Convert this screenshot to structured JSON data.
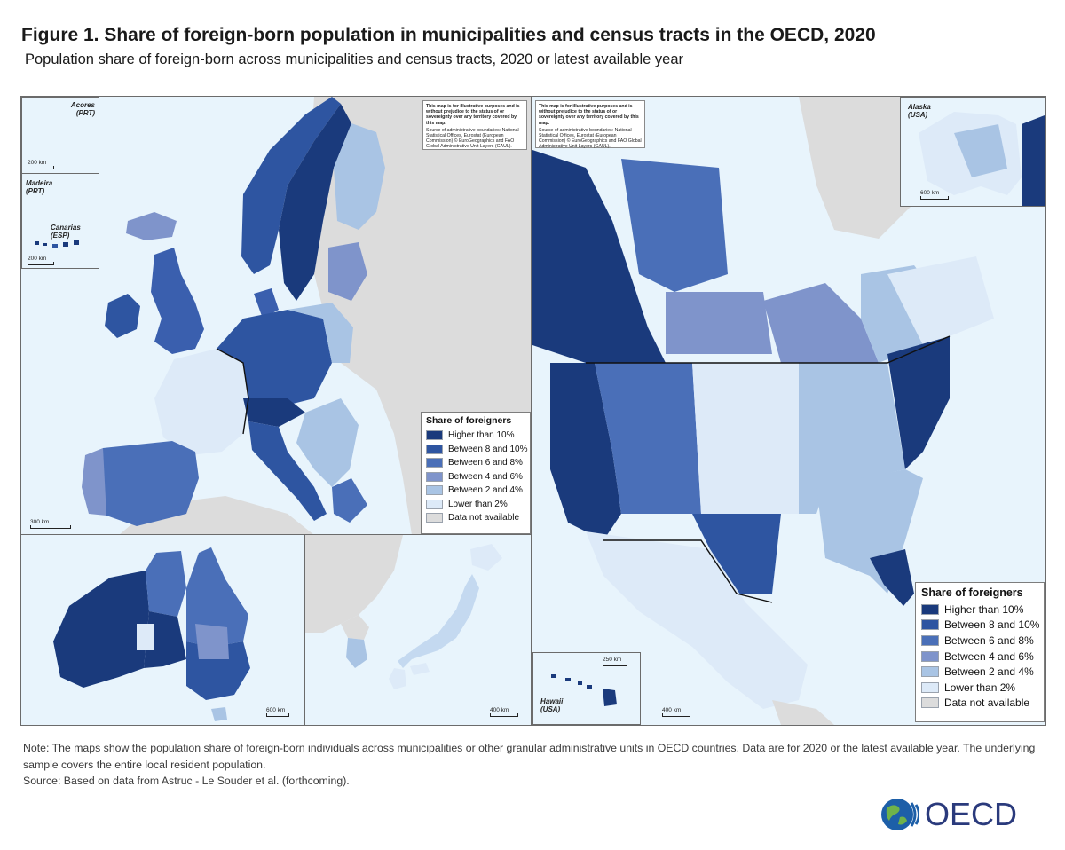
{
  "title": "Figure 1. Share of foreign-born population in municipalities and census tracts in the OECD, 2020",
  "subtitle": "Population share of foreign-born across municipalities and census tracts, 2020 or latest available year",
  "colors": {
    "c1": "#1a3a7c",
    "c2": "#2e55a1",
    "c3": "#4a6fb8",
    "c4": "#7f94cb",
    "c5": "#a9c4e4",
    "c6": "#ddeaf8",
    "na": "#dcdcdc",
    "sea": "#e8f4fc"
  },
  "disclaimer": {
    "bold": "This map is for illustrative purposes and is without prejudice to the status of or sovereignty over any territory covered by this map.",
    "source": "Source of administrative boundaries: National Statistical Offices, Eurostat (European Commission) © EuroGeographics and FAO Global Administrative Unit Layers (GAUL)."
  },
  "legend": {
    "title": "Share of foreigners",
    "items": [
      {
        "label": "Higher than 10%",
        "color": "#1a3a7c"
      },
      {
        "label": "Between 8 and 10%",
        "color": "#2e55a1"
      },
      {
        "label": "Between 6 and 8%",
        "color": "#4a6fb8"
      },
      {
        "label": "Between 4 and 6%",
        "color": "#7f94cb"
      },
      {
        "label": "Between 2 and 4%",
        "color": "#a9c4e4"
      },
      {
        "label": "Lower than 2%",
        "color": "#ddeaf8"
      },
      {
        "label": "Data not available",
        "color": "#dcdcdc"
      }
    ]
  },
  "insets": {
    "acores": {
      "label": "Acores",
      "country": "(PRT)",
      "scale": "200 km"
    },
    "madeira": {
      "label": "Madeira",
      "country": "(PRT)"
    },
    "canarias": {
      "label": "Canarias",
      "country": "(ESP)",
      "scale": "200 km"
    },
    "europe_scale": "300 km",
    "australia_scale": "600 km",
    "japan_scale": "400 km",
    "alaska": {
      "label": "Alaska",
      "country": "(USA)",
      "scale": "600 km"
    },
    "hawaii": {
      "label": "Hawaii",
      "country": "(USA)",
      "scale": "250 km"
    },
    "na_scale": "400 km"
  },
  "note": "Note: The maps show the population share of foreign-born individuals across municipalities or other granular administrative units in OECD countries. Data are for 2020 or the latest available year. The underlying sample covers the entire local resident population.",
  "source": "Source: Based on data from Astruc - Le Souder et al. (forthcoming).",
  "logo": {
    "word": "OECD"
  }
}
